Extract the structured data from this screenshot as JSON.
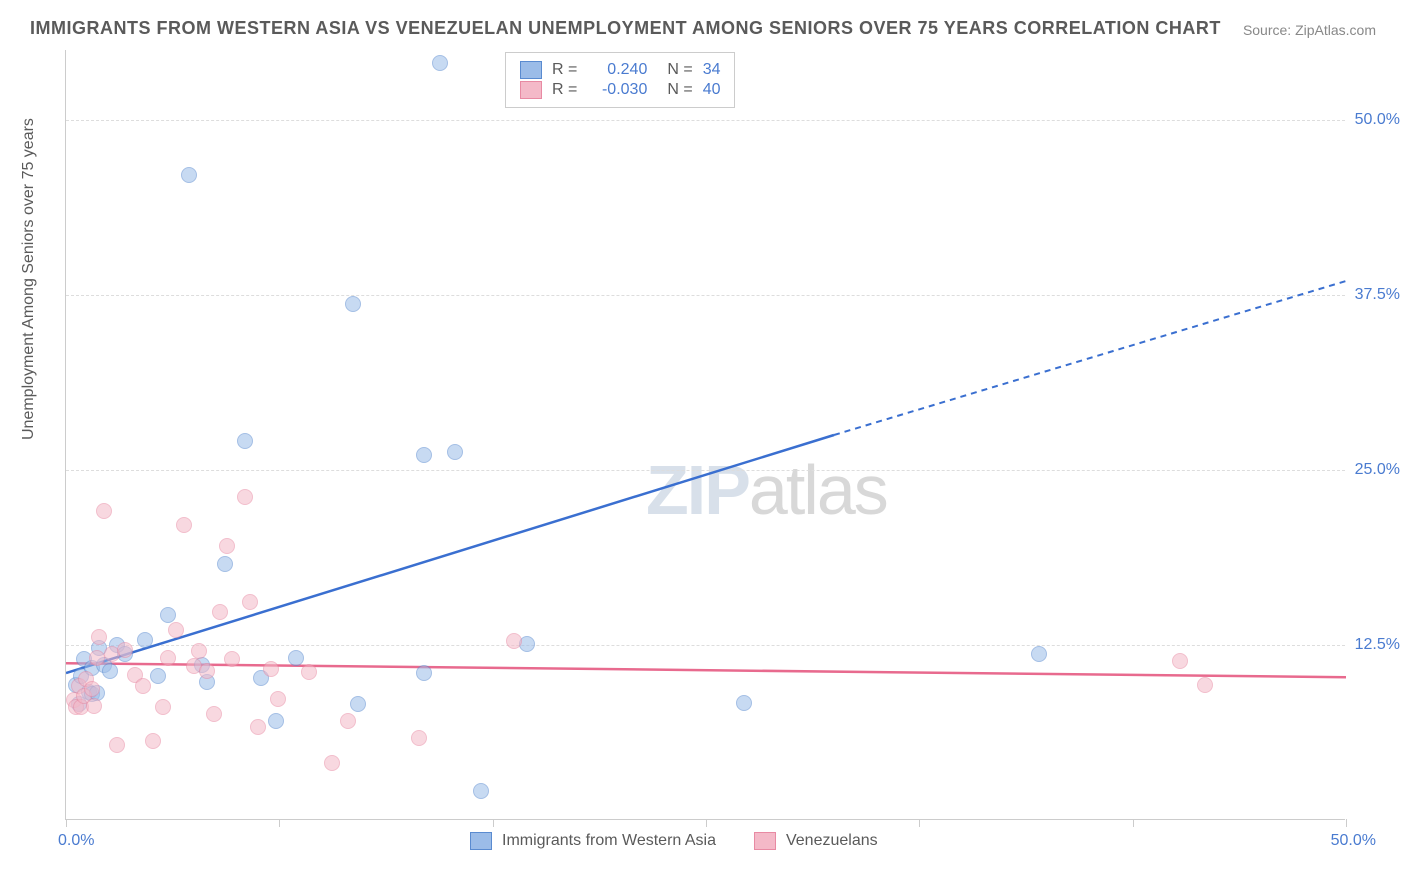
{
  "title": "IMMIGRANTS FROM WESTERN ASIA VS VENEZUELAN UNEMPLOYMENT AMONG SENIORS OVER 75 YEARS CORRELATION CHART",
  "source_prefix": "Source: ",
  "source": "ZipAtlas.com",
  "ylabel": "Unemployment Among Seniors over 75 years",
  "watermark_bold": "ZIP",
  "watermark_thin": "atlas",
  "chart": {
    "type": "scatter",
    "xlim": [
      0,
      50
    ],
    "ylim": [
      0,
      55
    ],
    "yticks": [
      {
        "value": 12.5,
        "label": "12.5%"
      },
      {
        "value": 25.0,
        "label": "25.0%"
      },
      {
        "value": 37.5,
        "label": "37.5%"
      },
      {
        "value": 50.0,
        "label": "50.0%"
      }
    ],
    "xticks": [
      0,
      8.33,
      16.67,
      25,
      33.33,
      41.67,
      50
    ],
    "xlabel_min": "0.0%",
    "xlabel_max": "50.0%",
    "background_color": "#ffffff",
    "grid_color": "#dddddd",
    "axis_color": "#cccccc",
    "marker_radius": 8,
    "marker_opacity": 0.55,
    "series": [
      {
        "name": "Immigrants from Western Asia",
        "color_fill": "#9bbce8",
        "color_stroke": "#5a8bd0",
        "line_color": "#3a6fd0",
        "R": "0.240",
        "N": "34",
        "trend": {
          "x1": 0,
          "y1": 10.5,
          "x2": 30,
          "y2": 27.5,
          "x2_dash": 50,
          "y2_dash": 38.5
        },
        "points": [
          [
            0.4,
            9.6
          ],
          [
            0.5,
            8.2
          ],
          [
            0.6,
            10.2
          ],
          [
            0.7,
            11.4
          ],
          [
            0.9,
            9.1
          ],
          [
            1.0,
            8.9
          ],
          [
            1.0,
            10.8
          ],
          [
            1.2,
            9.0
          ],
          [
            1.3,
            12.2
          ],
          [
            1.5,
            11.0
          ],
          [
            1.7,
            10.6
          ],
          [
            2.0,
            12.4
          ],
          [
            2.3,
            11.8
          ],
          [
            3.1,
            12.8
          ],
          [
            3.6,
            10.2
          ],
          [
            4.0,
            14.6
          ],
          [
            4.8,
            46.0
          ],
          [
            5.3,
            11.0
          ],
          [
            5.5,
            9.8
          ],
          [
            6.2,
            18.2
          ],
          [
            7.0,
            27.0
          ],
          [
            7.6,
            10.1
          ],
          [
            8.2,
            7.0
          ],
          [
            9.0,
            11.5
          ],
          [
            11.2,
            36.8
          ],
          [
            11.4,
            8.2
          ],
          [
            14.0,
            26.0
          ],
          [
            14.0,
            10.4
          ],
          [
            14.6,
            54.0
          ],
          [
            15.2,
            26.2
          ],
          [
            16.2,
            2.0
          ],
          [
            18.0,
            12.5
          ],
          [
            26.5,
            8.3
          ],
          [
            38.0,
            11.8
          ]
        ]
      },
      {
        "name": "Venezuelans",
        "color_fill": "#f4b9c8",
        "color_stroke": "#e88aa3",
        "line_color": "#e86a8e",
        "R": "-0.030",
        "N": "40",
        "trend": {
          "x1": 0,
          "y1": 11.2,
          "x2": 50,
          "y2": 10.2
        },
        "points": [
          [
            0.3,
            8.5
          ],
          [
            0.4,
            8.0
          ],
          [
            0.5,
            9.5
          ],
          [
            0.6,
            8.0
          ],
          [
            0.7,
            8.8
          ],
          [
            0.8,
            10.0
          ],
          [
            1.0,
            9.3
          ],
          [
            1.1,
            8.1
          ],
          [
            1.2,
            11.5
          ],
          [
            1.3,
            13.0
          ],
          [
            1.5,
            22.0
          ],
          [
            1.8,
            11.8
          ],
          [
            2.0,
            5.3
          ],
          [
            2.3,
            12.1
          ],
          [
            2.7,
            10.3
          ],
          [
            3.0,
            9.5
          ],
          [
            3.4,
            5.6
          ],
          [
            3.8,
            8.0
          ],
          [
            4.0,
            11.5
          ],
          [
            4.3,
            13.5
          ],
          [
            4.6,
            21.0
          ],
          [
            5.0,
            10.9
          ],
          [
            5.2,
            12.0
          ],
          [
            5.5,
            10.6
          ],
          [
            5.8,
            7.5
          ],
          [
            6.0,
            14.8
          ],
          [
            6.3,
            19.5
          ],
          [
            6.5,
            11.4
          ],
          [
            7.0,
            23.0
          ],
          [
            7.2,
            15.5
          ],
          [
            7.5,
            6.6
          ],
          [
            8.0,
            10.7
          ],
          [
            8.3,
            8.6
          ],
          [
            9.5,
            10.5
          ],
          [
            10.4,
            4.0
          ],
          [
            11.0,
            7.0
          ],
          [
            13.8,
            5.8
          ],
          [
            17.5,
            12.7
          ],
          [
            43.5,
            11.3
          ],
          [
            44.5,
            9.6
          ]
        ]
      }
    ]
  },
  "legend_top": {
    "r_label": "R =",
    "n_label": "N ="
  },
  "colors": {
    "title": "#5a5a5a",
    "tick_label": "#4a7bd0",
    "stat_value": "#4a7bd0",
    "stat_label": "#5a5a5a"
  }
}
